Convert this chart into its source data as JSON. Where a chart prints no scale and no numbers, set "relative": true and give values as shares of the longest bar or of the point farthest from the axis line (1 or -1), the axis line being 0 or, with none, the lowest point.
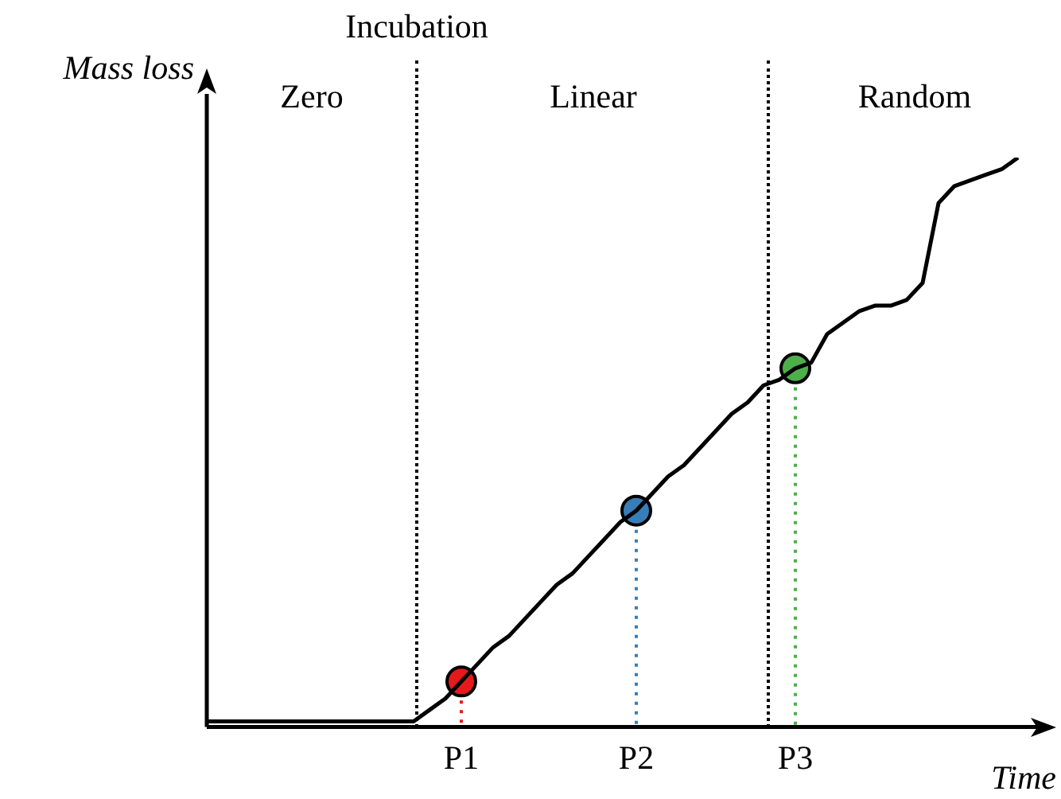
{
  "chart_data": {
    "type": "line",
    "relative": true,
    "xlabel": "Time",
    "ylabel": "Mass loss",
    "categories": [
      null,
      null,
      null,
      null,
      null,
      null,
      null,
      null,
      null,
      null,
      null,
      null,
      null,
      null,
      null,
      null,
      "P1",
      null,
      null,
      null,
      null,
      null,
      null,
      null,
      null,
      null,
      null,
      "P2",
      null,
      null,
      null,
      null,
      null,
      null,
      null,
      null,
      null,
      "P3",
      null,
      null,
      null,
      null,
      null,
      null,
      null,
      null,
      null,
      null,
      null,
      null,
      null,
      null
    ],
    "series": [
      {
        "color": "#000000",
        "values": [
          0.01,
          0.01,
          0.01,
          0.01,
          0.01,
          0.01,
          0.01,
          0.01,
          0.01,
          0.01,
          0.01,
          0.01,
          0.01,
          0.01,
          0.03,
          0.05,
          0.08,
          0.11,
          0.14,
          0.16,
          0.19,
          0.22,
          0.25,
          0.27,
          0.3,
          0.33,
          0.36,
          0.38,
          0.41,
          0.44,
          0.46,
          0.49,
          0.52,
          0.55,
          0.57,
          0.6,
          0.61,
          0.63,
          0.64,
          0.69,
          0.71,
          0.73,
          0.74,
          0.74,
          0.75,
          0.78,
          0.92,
          0.95,
          0.96,
          0.97,
          0.98,
          1
        ]
      },
      {
        "type": "scatter",
        "marker": "circle",
        "x": [
          "P1",
          "P2",
          "P3"
        ],
        "colors": [
          "#e41a1c",
          "#377eb8",
          "#4daf4a"
        ],
        "values": [
          0.08,
          0.38,
          0.63
        ]
      }
    ],
    "annotations": [
      "Incubation",
      "Zero",
      "Linear",
      "Random"
    ]
  }
}
